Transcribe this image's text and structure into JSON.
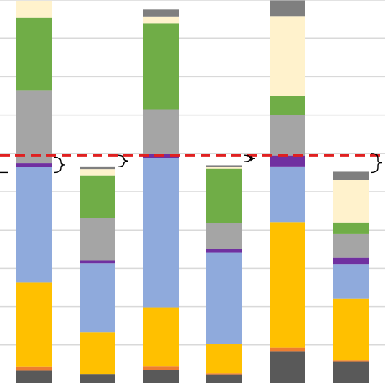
{
  "chart_data": {
    "type": "bar",
    "stacked": true,
    "grid": true,
    "legend": "none",
    "ylim": [
      0,
      1000
    ],
    "grid_values": [
      100,
      200,
      300,
      400,
      500,
      600,
      700,
      800,
      900,
      1000
    ],
    "threshold": {
      "value": 595,
      "color": "#e02020",
      "style": "dashed"
    },
    "categories": [
      "",
      "",
      "",
      "",
      "",
      ""
    ],
    "series": [
      {
        "color": "#595959",
        "values": [
          33,
          23,
          34,
          22,
          84,
          56
        ]
      },
      {
        "color": "#ed7d31",
        "values": [
          10,
          0,
          10,
          5,
          10,
          5
        ]
      },
      {
        "color": "#ffc000",
        "values": [
          221,
          110,
          154,
          75,
          327,
          160
        ]
      },
      {
        "color": "#8faadc",
        "values": [
          300,
          180,
          390,
          240,
          145,
          90
        ]
      },
      {
        "color": "#7030a0",
        "values": [
          10,
          8,
          10,
          8,
          28,
          16
        ]
      },
      {
        "color": "#a5a5a5",
        "values": [
          190,
          110,
          117,
          68,
          106,
          63
        ]
      },
      {
        "color": "#70ad47",
        "values": [
          190,
          110,
          225,
          142,
          50,
          30
        ]
      },
      {
        "color": "#fff2cc",
        "values": [
          44,
          18,
          16,
          4,
          207,
          110
        ]
      },
      {
        "color": "#7f7f7f",
        "values": [
          0,
          7,
          20,
          5,
          42,
          22
        ]
      }
    ],
    "brackets": [
      {
        "after_bar": 0,
        "top": 590,
        "bottom": 550
      },
      {
        "after_bar": 1,
        "top": 595,
        "bottom": 565
      },
      {
        "after_bar": 3,
        "top": 595,
        "bottom": 578
      },
      {
        "after_bar": 5,
        "top": 600,
        "bottom": 550
      }
    ]
  }
}
